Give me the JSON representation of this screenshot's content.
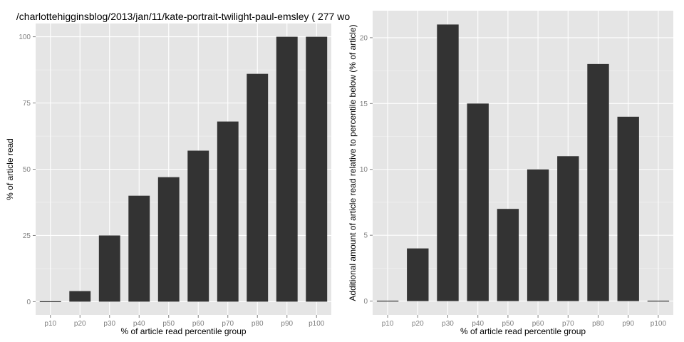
{
  "chart_data": [
    {
      "type": "bar",
      "title": "/charlottehigginsblog/2013/jan/11/kate-portrait-twilight-paul-emsley ( 277 wo",
      "xlabel": "% of article read percentile group",
      "ylabel": "% of article read",
      "categories": [
        "p10",
        "p20",
        "p30",
        "p40",
        "p50",
        "p60",
        "p70",
        "p80",
        "p90",
        "p100"
      ],
      "values": [
        0,
        4,
        25,
        40,
        47,
        57,
        68,
        86,
        100,
        100
      ],
      "ylim": [
        -5,
        105
      ],
      "yticks": [
        0,
        25,
        50,
        75,
        100
      ],
      "grid": true
    },
    {
      "type": "bar",
      "title": "",
      "xlabel": "% of article read percentile group",
      "ylabel": "Additional amount of article read relative to percentile below (% of article)",
      "categories": [
        "p10",
        "p20",
        "p30",
        "p40",
        "p50",
        "p60",
        "p70",
        "p80",
        "p90",
        "p100"
      ],
      "values": [
        0,
        4,
        21,
        15,
        7,
        10,
        11,
        18,
        14,
        0
      ],
      "ylim": [
        -1.05,
        22.05
      ],
      "yticks": [
        0,
        5,
        10,
        15,
        20
      ],
      "grid": true
    }
  ]
}
